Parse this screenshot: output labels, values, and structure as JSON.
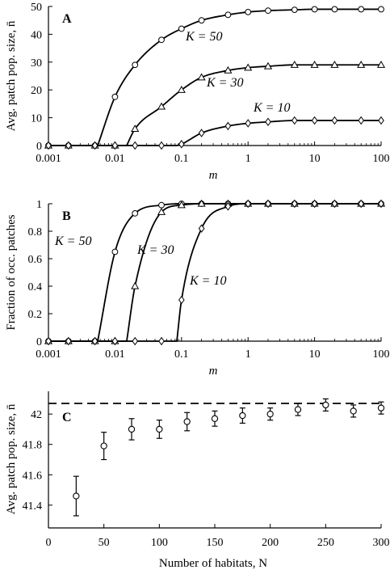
{
  "chart_data": [
    {
      "panel": "A",
      "type": "line",
      "x_scale": "log",
      "xlabel": "m",
      "ylabel": "Avg. patch pop. size, n̄",
      "xlim": [
        0.001,
        100
      ],
      "ylim": [
        0,
        50
      ],
      "x_ticks": [
        "0.001",
        "0.01",
        "0.1",
        "1",
        "10",
        "100"
      ],
      "y_ticks": [
        "0",
        "10",
        "20",
        "30",
        "40",
        "50"
      ],
      "series": [
        {
          "name": "K = 50",
          "label": "K = 50",
          "marker": "circle",
          "x": [
            0.001,
            0.002,
            0.005,
            0.01,
            0.02,
            0.05,
            0.1,
            0.2,
            0.5,
            1,
            2,
            5,
            10,
            20,
            50,
            100
          ],
          "y": [
            0,
            0,
            0,
            17.5,
            29,
            38,
            42,
            45,
            47,
            48,
            48.5,
            48.8,
            49,
            49,
            49,
            49
          ],
          "curve_start": 0.0055
        },
        {
          "name": "K = 30",
          "label": "K = 30",
          "marker": "triangle",
          "x": [
            0.001,
            0.002,
            0.005,
            0.01,
            0.02,
            0.05,
            0.1,
            0.2,
            0.5,
            1,
            2,
            5,
            10,
            20,
            50,
            100
          ],
          "y": [
            0,
            0,
            0,
            0,
            6,
            14,
            20,
            24.5,
            27,
            28,
            28.5,
            29,
            29,
            29,
            29,
            29
          ],
          "curve_start": 0.015
        },
        {
          "name": "K = 10",
          "label": "K = 10",
          "marker": "diamond",
          "x": [
            0.001,
            0.002,
            0.005,
            0.01,
            0.02,
            0.05,
            0.1,
            0.2,
            0.5,
            1,
            2,
            5,
            10,
            20,
            50,
            100
          ],
          "y": [
            0,
            0,
            0,
            0,
            0,
            0,
            0.5,
            4.5,
            7,
            8,
            8.5,
            9,
            9,
            9,
            9,
            9
          ],
          "curve_start": 0.085
        }
      ]
    },
    {
      "panel": "B",
      "type": "line",
      "x_scale": "log",
      "xlabel": "m",
      "ylabel": "Fraction of occ. patches",
      "xlim": [
        0.001,
        100
      ],
      "ylim": [
        0,
        1
      ],
      "x_ticks": [
        "0.001",
        "0.01",
        "0.1",
        "1",
        "10",
        "100"
      ],
      "y_ticks": [
        "0",
        "0.2",
        "0.4",
        "0.6",
        "0.8",
        "1"
      ],
      "series": [
        {
          "name": "K = 50",
          "label": "K = 50",
          "marker": "circle",
          "x": [
            0.001,
            0.002,
            0.005,
            0.01,
            0.02,
            0.05,
            0.1,
            0.2,
            0.5,
            1,
            2,
            5,
            10,
            20,
            50,
            100
          ],
          "y": [
            0,
            0,
            0,
            0.65,
            0.93,
            0.99,
            1,
            1,
            1,
            1,
            1,
            1,
            1,
            1,
            1,
            1
          ],
          "curve_start": 0.0055
        },
        {
          "name": "K = 30",
          "label": "K = 30",
          "marker": "triangle",
          "x": [
            0.001,
            0.002,
            0.005,
            0.01,
            0.02,
            0.05,
            0.1,
            0.2,
            0.5,
            1,
            2,
            5,
            10,
            20,
            50,
            100
          ],
          "y": [
            0,
            0,
            0,
            0,
            0.4,
            0.94,
            0.99,
            1,
            1,
            1,
            1,
            1,
            1,
            1,
            1,
            1
          ],
          "curve_start": 0.015
        },
        {
          "name": "K = 10",
          "label": "K = 10",
          "marker": "diamond",
          "x": [
            0.001,
            0.002,
            0.005,
            0.01,
            0.02,
            0.05,
            0.1,
            0.2,
            0.5,
            1,
            2,
            5,
            10,
            20,
            50,
            100
          ],
          "y": [
            0,
            0,
            0,
            0,
            0,
            0,
            0.3,
            0.82,
            0.98,
            1,
            1,
            1,
            1,
            1,
            1,
            1
          ],
          "curve_start": 0.085
        }
      ]
    },
    {
      "panel": "C",
      "type": "scatter",
      "xlabel": "Number of habitats, N",
      "ylabel": "Avg. patch pop. size, n̄",
      "xlim": [
        0,
        300
      ],
      "ylim": [
        41.25,
        42.15
      ],
      "x_ticks": [
        "0",
        "50",
        "100",
        "150",
        "200",
        "250",
        "300"
      ],
      "y_ticks": [
        "41.4",
        "41.6",
        "41.8",
        "42"
      ],
      "reference_line": 42.07,
      "points": [
        {
          "x": 25,
          "y": 41.46,
          "err": 0.13
        },
        {
          "x": 50,
          "y": 41.79,
          "err": 0.09
        },
        {
          "x": 75,
          "y": 41.9,
          "err": 0.07
        },
        {
          "x": 100,
          "y": 41.9,
          "err": 0.06
        },
        {
          "x": 125,
          "y": 41.95,
          "err": 0.06
        },
        {
          "x": 150,
          "y": 41.97,
          "err": 0.05
        },
        {
          "x": 175,
          "y": 41.99,
          "err": 0.05
        },
        {
          "x": 200,
          "y": 42.0,
          "err": 0.04
        },
        {
          "x": 225,
          "y": 42.03,
          "err": 0.04
        },
        {
          "x": 250,
          "y": 42.06,
          "err": 0.04
        },
        {
          "x": 275,
          "y": 42.02,
          "err": 0.04
        },
        {
          "x": 300,
          "y": 42.04,
          "err": 0.04
        }
      ]
    }
  ]
}
